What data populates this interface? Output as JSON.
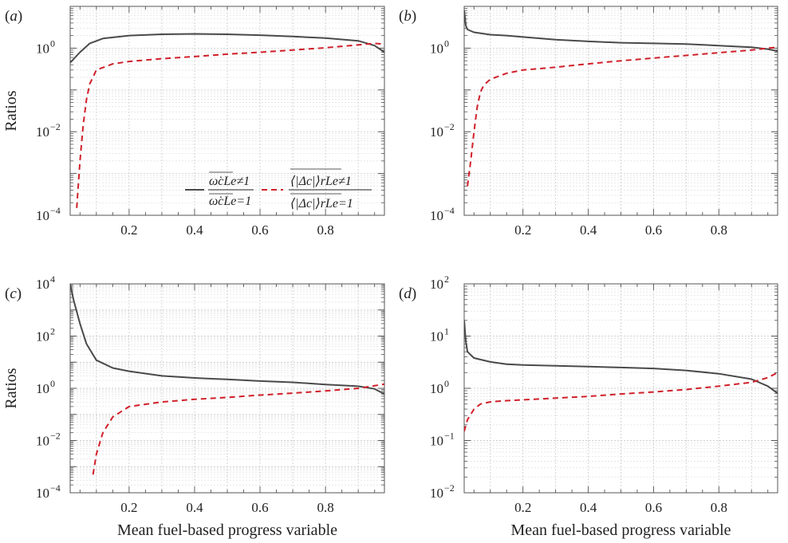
{
  "figure": {
    "xlabel": "Mean fuel-based progress variable",
    "ylabel": "Ratios"
  },
  "legend": {
    "solid_label": {
      "num": "ω̇cLe≠1",
      "den": "ω̇cLe=1"
    },
    "dashed_label": {
      "num": "⟨|Δc|⟩rLe≠1",
      "den": "⟨|Δc|⟩rLe=1"
    }
  },
  "colors": {
    "solid": "#4a4a4a",
    "dashed": "#d0202a",
    "grid": "#cfcfcf",
    "axes": "#555555"
  },
  "chart_data": [
    {
      "type": "line",
      "panel": "(a)",
      "xlabel": "",
      "ylabel": "Ratios",
      "xscale": "linear",
      "yscale": "log",
      "xlim": [
        0.02,
        0.98
      ],
      "ylim": [
        0.0001,
        10
      ],
      "xticks": [
        0.2,
        0.4,
        0.6,
        0.8
      ],
      "yticks": [
        0.0001,
        0.01,
        1
      ],
      "ytick_labels": [
        {
          "base": "10",
          "exp": "−4"
        },
        {
          "base": "10",
          "exp": "−2"
        },
        {
          "base": "10",
          "exp": "0"
        }
      ],
      "grid": true,
      "legend_position": "bottom-right",
      "series": [
        {
          "style": "solid",
          "x": [
            0.02,
            0.05,
            0.08,
            0.12,
            0.2,
            0.3,
            0.4,
            0.5,
            0.6,
            0.7,
            0.8,
            0.9,
            0.95,
            0.98
          ],
          "y": [
            0.45,
            0.8,
            1.3,
            1.7,
            2.0,
            2.15,
            2.2,
            2.15,
            2.05,
            1.9,
            1.75,
            1.5,
            1.15,
            0.8
          ]
        },
        {
          "style": "dashed",
          "x": [
            0.04,
            0.05,
            0.06,
            0.07,
            0.08,
            0.1,
            0.15,
            0.2,
            0.3,
            0.4,
            0.5,
            0.6,
            0.7,
            0.8,
            0.9,
            0.95,
            0.98
          ],
          "y": [
            0.00015,
            0.002,
            0.015,
            0.06,
            0.14,
            0.3,
            0.42,
            0.48,
            0.56,
            0.63,
            0.72,
            0.8,
            0.9,
            1.02,
            1.2,
            1.3,
            1.25
          ]
        }
      ]
    },
    {
      "type": "line",
      "panel": "(b)",
      "xlabel": "",
      "ylabel": "",
      "xscale": "linear",
      "yscale": "log",
      "xlim": [
        0.02,
        0.98
      ],
      "ylim": [
        0.0001,
        10
      ],
      "xticks": [
        0.2,
        0.4,
        0.6,
        0.8
      ],
      "yticks": [
        0.0001,
        0.01,
        1
      ],
      "ytick_labels": [
        {
          "base": "10",
          "exp": "−4"
        },
        {
          "base": "10",
          "exp": "−2"
        },
        {
          "base": "10",
          "exp": "0"
        }
      ],
      "grid": true,
      "series": [
        {
          "style": "solid",
          "x": [
            0.02,
            0.025,
            0.03,
            0.05,
            0.1,
            0.15,
            0.2,
            0.3,
            0.4,
            0.5,
            0.6,
            0.7,
            0.8,
            0.9,
            0.95,
            0.98
          ],
          "y": [
            8.0,
            3.5,
            2.8,
            2.4,
            2.1,
            2.0,
            1.85,
            1.6,
            1.45,
            1.35,
            1.3,
            1.25,
            1.15,
            1.05,
            0.95,
            0.85
          ]
        },
        {
          "style": "dashed",
          "x": [
            0.03,
            0.04,
            0.05,
            0.06,
            0.07,
            0.08,
            0.1,
            0.15,
            0.2,
            0.3,
            0.4,
            0.5,
            0.6,
            0.7,
            0.8,
            0.9,
            0.95,
            0.98
          ],
          "y": [
            0.0005,
            0.002,
            0.01,
            0.04,
            0.09,
            0.13,
            0.18,
            0.25,
            0.3,
            0.35,
            0.42,
            0.5,
            0.58,
            0.67,
            0.78,
            0.9,
            1.0,
            1.05
          ]
        }
      ]
    },
    {
      "type": "line",
      "panel": "(c)",
      "xlabel": "Mean fuel-based progress variable",
      "ylabel": "Ratios",
      "xscale": "linear",
      "yscale": "log",
      "xlim": [
        0.02,
        0.98
      ],
      "ylim": [
        0.0001,
        10000
      ],
      "xticks": [
        0.2,
        0.4,
        0.6,
        0.8
      ],
      "yticks": [
        0.0001,
        0.01,
        1,
        100,
        10000
      ],
      "ytick_labels": [
        {
          "base": "10",
          "exp": "−4"
        },
        {
          "base": "10",
          "exp": "−2"
        },
        {
          "base": "10",
          "exp": "0"
        },
        {
          "base": "10",
          "exp": "2"
        },
        {
          "base": "10",
          "exp": "4"
        }
      ],
      "grid": true,
      "series": [
        {
          "style": "solid",
          "x": [
            0.02,
            0.03,
            0.05,
            0.07,
            0.1,
            0.15,
            0.2,
            0.3,
            0.4,
            0.5,
            0.6,
            0.7,
            0.8,
            0.9,
            0.95,
            0.98
          ],
          "y": [
            10000,
            2500,
            300,
            50,
            12,
            6,
            4.5,
            3.0,
            2.5,
            2.2,
            1.9,
            1.7,
            1.4,
            1.2,
            0.95,
            0.6
          ]
        },
        {
          "style": "dashed",
          "x": [
            0.09,
            0.1,
            0.12,
            0.15,
            0.2,
            0.3,
            0.4,
            0.5,
            0.6,
            0.7,
            0.8,
            0.9,
            0.95,
            0.98
          ],
          "y": [
            0.0005,
            0.003,
            0.02,
            0.08,
            0.2,
            0.3,
            0.38,
            0.45,
            0.55,
            0.65,
            0.8,
            1.0,
            1.25,
            1.45
          ]
        }
      ]
    },
    {
      "type": "line",
      "panel": "(d)",
      "xlabel": "Mean fuel-based progress variable",
      "ylabel": "",
      "xscale": "linear",
      "yscale": "log",
      "xlim": [
        0.02,
        0.98
      ],
      "ylim": [
        0.01,
        100
      ],
      "xticks": [
        0.2,
        0.4,
        0.6,
        0.8
      ],
      "yticks": [
        0.01,
        0.1,
        1,
        10,
        100
      ],
      "ytick_labels": [
        {
          "base": "10",
          "exp": "−2"
        },
        {
          "base": "10",
          "exp": "−1"
        },
        {
          "base": "10",
          "exp": "0"
        },
        {
          "base": "10",
          "exp": "1"
        },
        {
          "base": "10",
          "exp": "2"
        }
      ],
      "grid": true,
      "series": [
        {
          "style": "solid",
          "x": [
            0.02,
            0.025,
            0.03,
            0.05,
            0.1,
            0.15,
            0.2,
            0.3,
            0.4,
            0.5,
            0.6,
            0.7,
            0.8,
            0.9,
            0.95,
            0.98
          ],
          "y": [
            20,
            8,
            5,
            3.8,
            3.2,
            2.9,
            2.8,
            2.7,
            2.6,
            2.5,
            2.4,
            2.2,
            1.9,
            1.5,
            1.1,
            0.8
          ]
        },
        {
          "style": "dashed",
          "x": [
            0.02,
            0.03,
            0.05,
            0.07,
            0.1,
            0.15,
            0.2,
            0.3,
            0.4,
            0.5,
            0.6,
            0.7,
            0.8,
            0.9,
            0.95,
            0.98
          ],
          "y": [
            0.15,
            0.25,
            0.4,
            0.5,
            0.55,
            0.58,
            0.6,
            0.65,
            0.7,
            0.78,
            0.85,
            0.95,
            1.1,
            1.3,
            1.6,
            2.0
          ]
        }
      ]
    }
  ]
}
